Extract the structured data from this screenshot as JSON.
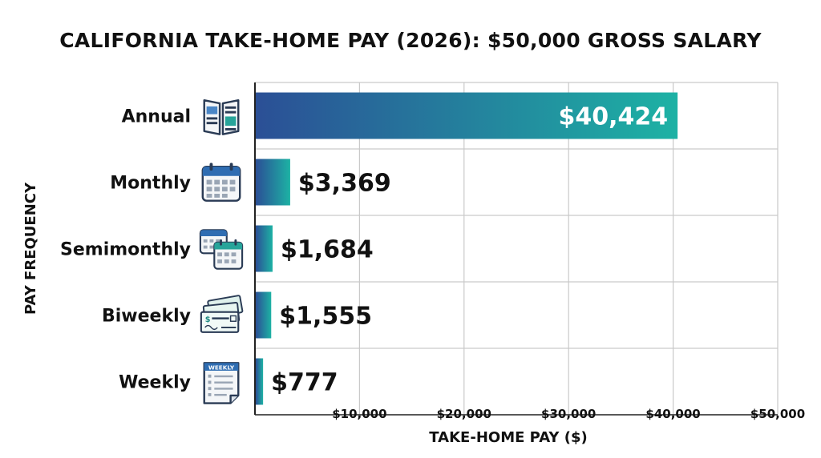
{
  "chart_data": {
    "type": "bar",
    "orientation": "horizontal",
    "title": "CALIFORNIA TAKE-HOME PAY (2026): $50,000 GROSS SALARY",
    "xlabel": "TAKE-HOME PAY ($)",
    "ylabel": "PAY FREQUENCY",
    "categories": [
      "Annual",
      "Monthly",
      "Semimonthly",
      "Biweekly",
      "Weekly"
    ],
    "values": [
      40424,
      3369,
      1684,
      1555,
      777
    ],
    "value_labels": [
      "$40,424",
      "$3,369",
      "$1,684",
      "$1,555",
      "$777"
    ],
    "icons": [
      "newspaper-icon",
      "calendar-icon",
      "double-calendar-icon",
      "paycheck-icon",
      "weekly-notepad-icon"
    ],
    "xlim": [
      0,
      50000
    ],
    "x_ticks": [
      10000,
      20000,
      30000,
      40000,
      50000
    ],
    "x_tick_labels": [
      "$10,000",
      "$20,000",
      "$30,000",
      "$40,000",
      "$50,000"
    ],
    "grid": true,
    "colors": {
      "bar_start": "#2b4f96",
      "bar_end": "#1db2a4"
    }
  }
}
